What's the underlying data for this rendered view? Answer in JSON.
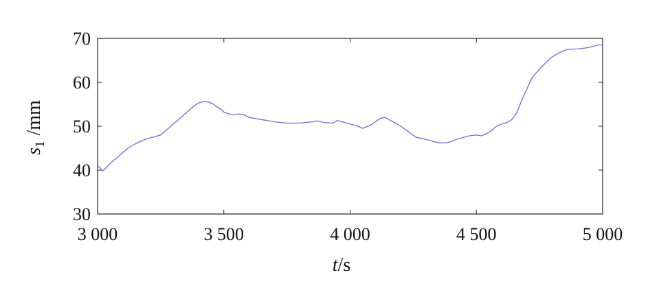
{
  "chart_data": {
    "type": "line",
    "xlabel_var": "t",
    "xlabel_unit": "/s",
    "ylabel_var": "s",
    "ylabel_sub": "1",
    "ylabel_unit": "/mm",
    "xlim": [
      3000,
      5000
    ],
    "ylim": [
      30,
      70
    ],
    "xticks": [
      3000,
      3500,
      4000,
      4500,
      5000
    ],
    "xtick_labels": [
      "3 000",
      "3 500",
      "4 000",
      "4 500",
      "5 000"
    ],
    "yticks": [
      30,
      40,
      50,
      60,
      70
    ],
    "ytick_labels": [
      "30",
      "40",
      "50",
      "60",
      "70"
    ],
    "grid": false,
    "line_color": "#6a6ad0",
    "series": [
      {
        "x": [
          3000,
          3010,
          3020,
          3030,
          3050,
          3080,
          3100,
          3120,
          3150,
          3180,
          3200,
          3220,
          3250,
          3280,
          3300,
          3320,
          3350,
          3380,
          3400,
          3420,
          3440,
          3460,
          3470,
          3490,
          3500,
          3520,
          3540,
          3560,
          3580,
          3600,
          3650,
          3700,
          3750,
          3800,
          3850,
          3870,
          3900,
          3930,
          3950,
          4000,
          4030,
          4050,
          4080,
          4100,
          4120,
          4140,
          4160,
          4180,
          4200,
          4230,
          4260,
          4300,
          4350,
          4380,
          4400,
          4420,
          4440,
          4470,
          4500,
          4520,
          4540,
          4560,
          4580,
          4600,
          4620,
          4640,
          4660,
          4680,
          4700,
          4720,
          4750,
          4780,
          4800,
          4830,
          4860,
          4900,
          4930,
          4950,
          4970,
          4980,
          5000
        ],
        "y": [
          41,
          40.5,
          39.8,
          40.3,
          41.5,
          43,
          44,
          45,
          46,
          46.8,
          47.2,
          47.5,
          48,
          49.5,
          50.5,
          51.5,
          53,
          54.5,
          55.3,
          55.6,
          55.5,
          55,
          54.5,
          53.8,
          53.2,
          52.8,
          52.6,
          52.8,
          52.6,
          52,
          51.5,
          51,
          50.7,
          50.7,
          51,
          51.2,
          50.8,
          50.7,
          51.3,
          50.5,
          50,
          49.5,
          50.2,
          51,
          51.8,
          52,
          51.3,
          50.7,
          50,
          48.8,
          47.5,
          47,
          46.2,
          46.2,
          46.5,
          47,
          47.3,
          47.8,
          48,
          47.8,
          48.3,
          49,
          50,
          50.5,
          50.8,
          51.5,
          53,
          56,
          58.5,
          61,
          63,
          64.8,
          65.8,
          66.8,
          67.5,
          67.6,
          67.8,
          68,
          68.3,
          68.5,
          68.5
        ]
      }
    ]
  }
}
